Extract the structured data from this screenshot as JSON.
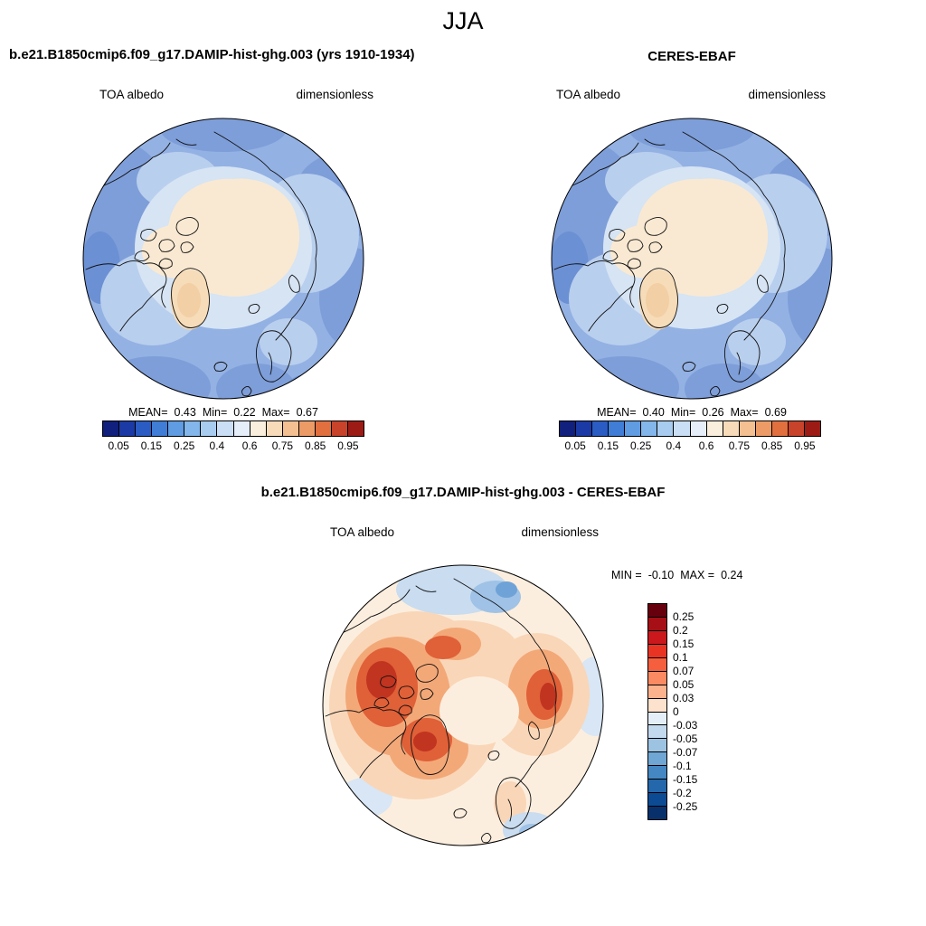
{
  "title": "JJA",
  "panels": {
    "model": {
      "header": "b.e21.B1850cmip6.f09_g17.DAMIP-hist-ghg.003 (yrs 1910-1934)",
      "var_label": "TOA albedo",
      "units_label": "dimensionless",
      "stats": {
        "mean_label": "MEAN=",
        "mean": "0.43",
        "min_label": "Min=",
        "min": "0.22",
        "max_label": "Max=",
        "max": "0.67"
      }
    },
    "obs": {
      "header": "CERES-EBAF",
      "var_label": "TOA albedo",
      "units_label": "dimensionless",
      "stats": {
        "mean_label": "MEAN=",
        "mean": "0.40",
        "min_label": "Min=",
        "min": "0.26",
        "max_label": "Max=",
        "max": "0.69"
      }
    },
    "diff": {
      "header": "b.e21.B1850cmip6.f09_g17.DAMIP-hist-ghg.003 - CERES-EBAF",
      "var_label": "TOA albedo",
      "units_label": "dimensionless",
      "stats": {
        "min_label": "MIN =",
        "min": "-0.10",
        "max_label": "MAX =",
        "max": "0.24"
      }
    }
  },
  "albedo_colorbar": {
    "colors": [
      "#111f7d",
      "#1b3aa5",
      "#2b5cc4",
      "#3f7dd6",
      "#5f9ce2",
      "#83b6ea",
      "#a8ccf0",
      "#cadff5",
      "#e6eefa",
      "#faeedd",
      "#f8dcba",
      "#f4c092",
      "#ed9b66",
      "#e2703f",
      "#c8432a",
      "#9c1c15"
    ],
    "tick_labels": [
      "0.05",
      "0.15",
      "0.25",
      "0.4",
      "0.6",
      "0.75",
      "0.85",
      "0.95"
    ]
  },
  "diff_colorbar": {
    "colors": [
      "#67000d",
      "#a50f15",
      "#cb181d",
      "#ea3423",
      "#f55f3e",
      "#fb8a62",
      "#fcb28d",
      "#fde2cd",
      "#e4eef8",
      "#c3d9ee",
      "#9cc3e2",
      "#6fa6d4",
      "#4587c2",
      "#2467ab",
      "#0d4a94",
      "#08306b"
    ],
    "tick_labels": [
      "0.25",
      "0.2",
      "0.15",
      "0.1",
      "0.07",
      "0.05",
      "0.03",
      "0",
      "-0.03",
      "-0.05",
      "-0.07",
      "-0.1",
      "-0.15",
      "-0.2",
      "-0.25"
    ]
  },
  "chart_data": [
    {
      "type": "heatmap",
      "subtype": "polar-map",
      "panel": "model",
      "season": "JJA",
      "title": "b.e21.B1850cmip6.f09_g17.DAMIP-hist-ghg.003 (yrs 1910-1934)",
      "variable": "TOA albedo",
      "units": "dimensionless",
      "projection": "north-polar-stereographic",
      "stats": {
        "mean": 0.43,
        "min": 0.22,
        "max": 0.67
      },
      "colorbar_ticks": [
        0.05,
        0.15,
        0.25,
        0.4,
        0.6,
        0.75,
        0.85,
        0.95
      ],
      "legend_position": "below"
    },
    {
      "type": "heatmap",
      "subtype": "polar-map",
      "panel": "observations",
      "season": "JJA",
      "title": "CERES-EBAF",
      "variable": "TOA albedo",
      "units": "dimensionless",
      "projection": "north-polar-stereographic",
      "stats": {
        "mean": 0.4,
        "min": 0.26,
        "max": 0.69
      },
      "colorbar_ticks": [
        0.05,
        0.15,
        0.25,
        0.4,
        0.6,
        0.75,
        0.85,
        0.95
      ],
      "legend_position": "below"
    },
    {
      "type": "heatmap",
      "subtype": "polar-map",
      "panel": "difference",
      "season": "JJA",
      "title": "b.e21.B1850cmip6.f09_g17.DAMIP-hist-ghg.003 - CERES-EBAF",
      "variable": "TOA albedo",
      "units": "dimensionless",
      "projection": "north-polar-stereographic",
      "stats": {
        "min": -0.1,
        "max": 0.24
      },
      "colorbar_ticks": [
        0.25,
        0.2,
        0.15,
        0.1,
        0.07,
        0.05,
        0.03,
        0,
        -0.03,
        -0.05,
        -0.07,
        -0.1,
        -0.15,
        -0.2,
        -0.25
      ],
      "legend_position": "right"
    }
  ]
}
